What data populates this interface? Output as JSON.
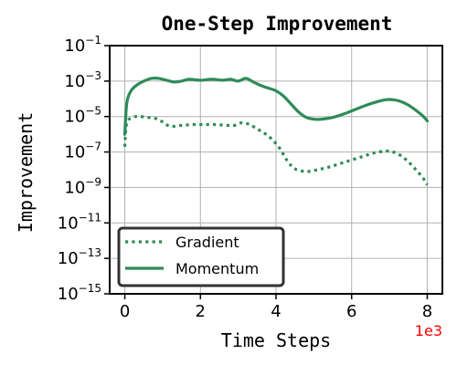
{
  "chart_data": {
    "type": "line",
    "title": "One-Step Improvement",
    "xlabel": "Time Steps",
    "ylabel": "Improvement",
    "x_offset_label": "1e3",
    "x_offset_color": "#ff0000",
    "xlim": [
      -0.4,
      8.4
    ],
    "ylim_log10": [
      -15,
      -1
    ],
    "y_scale": "log",
    "grid": true,
    "legend_position": "lower-left",
    "x_ticks": [
      0,
      2,
      4,
      6,
      8
    ],
    "y_ticks_exp": [
      -15,
      -13,
      -11,
      -9,
      -7,
      -5,
      -3,
      -1
    ],
    "y_tick_base": "10",
    "series": [
      {
        "name": "Gradient",
        "style": "dotted",
        "color": "#2e8b57",
        "x": [
          0.0,
          0.05,
          0.2,
          0.4,
          0.6,
          0.8,
          1.0,
          1.2,
          1.5,
          1.8,
          2.1,
          2.4,
          2.7,
          2.9,
          3.1,
          3.3,
          3.5,
          3.7,
          3.9,
          4.1,
          4.3,
          4.5,
          4.8,
          5.1,
          5.4,
          5.7,
          6.0,
          6.3,
          6.6,
          6.9,
          7.1,
          7.3,
          7.5,
          7.7,
          7.9,
          8.0
        ],
        "y_log10": [
          -6.7,
          -5.4,
          -5.05,
          -5.0,
          -5.05,
          -5.1,
          -5.3,
          -5.55,
          -5.5,
          -5.45,
          -5.45,
          -5.45,
          -5.5,
          -5.5,
          -5.35,
          -5.45,
          -5.7,
          -5.95,
          -6.3,
          -6.8,
          -7.5,
          -7.95,
          -8.1,
          -8.0,
          -7.85,
          -7.65,
          -7.45,
          -7.25,
          -7.05,
          -6.95,
          -7.0,
          -7.2,
          -7.55,
          -8.0,
          -8.5,
          -8.85
        ]
      },
      {
        "name": "Momentum",
        "style": "solid",
        "color": "#2e8b57",
        "x": [
          0.0,
          0.05,
          0.15,
          0.3,
          0.5,
          0.7,
          0.9,
          1.1,
          1.3,
          1.5,
          1.7,
          2.0,
          2.3,
          2.6,
          2.8,
          3.0,
          3.2,
          3.4,
          3.6,
          3.8,
          4.0,
          4.2,
          4.4,
          4.6,
          4.8,
          5.0,
          5.2,
          5.5,
          5.8,
          6.1,
          6.4,
          6.7,
          6.9,
          7.1,
          7.3,
          7.5,
          7.7,
          7.9,
          8.0
        ],
        "y_log10": [
          -6.0,
          -4.3,
          -3.6,
          -3.25,
          -3.0,
          -2.85,
          -2.85,
          -2.95,
          -3.05,
          -3.0,
          -2.9,
          -2.95,
          -2.9,
          -2.95,
          -2.9,
          -3.0,
          -2.85,
          -3.05,
          -3.25,
          -3.4,
          -3.55,
          -3.85,
          -4.3,
          -4.75,
          -5.05,
          -5.15,
          -5.15,
          -5.05,
          -4.85,
          -4.6,
          -4.35,
          -4.15,
          -4.05,
          -4.05,
          -4.15,
          -4.35,
          -4.65,
          -5.0,
          -5.25
        ]
      }
    ]
  }
}
